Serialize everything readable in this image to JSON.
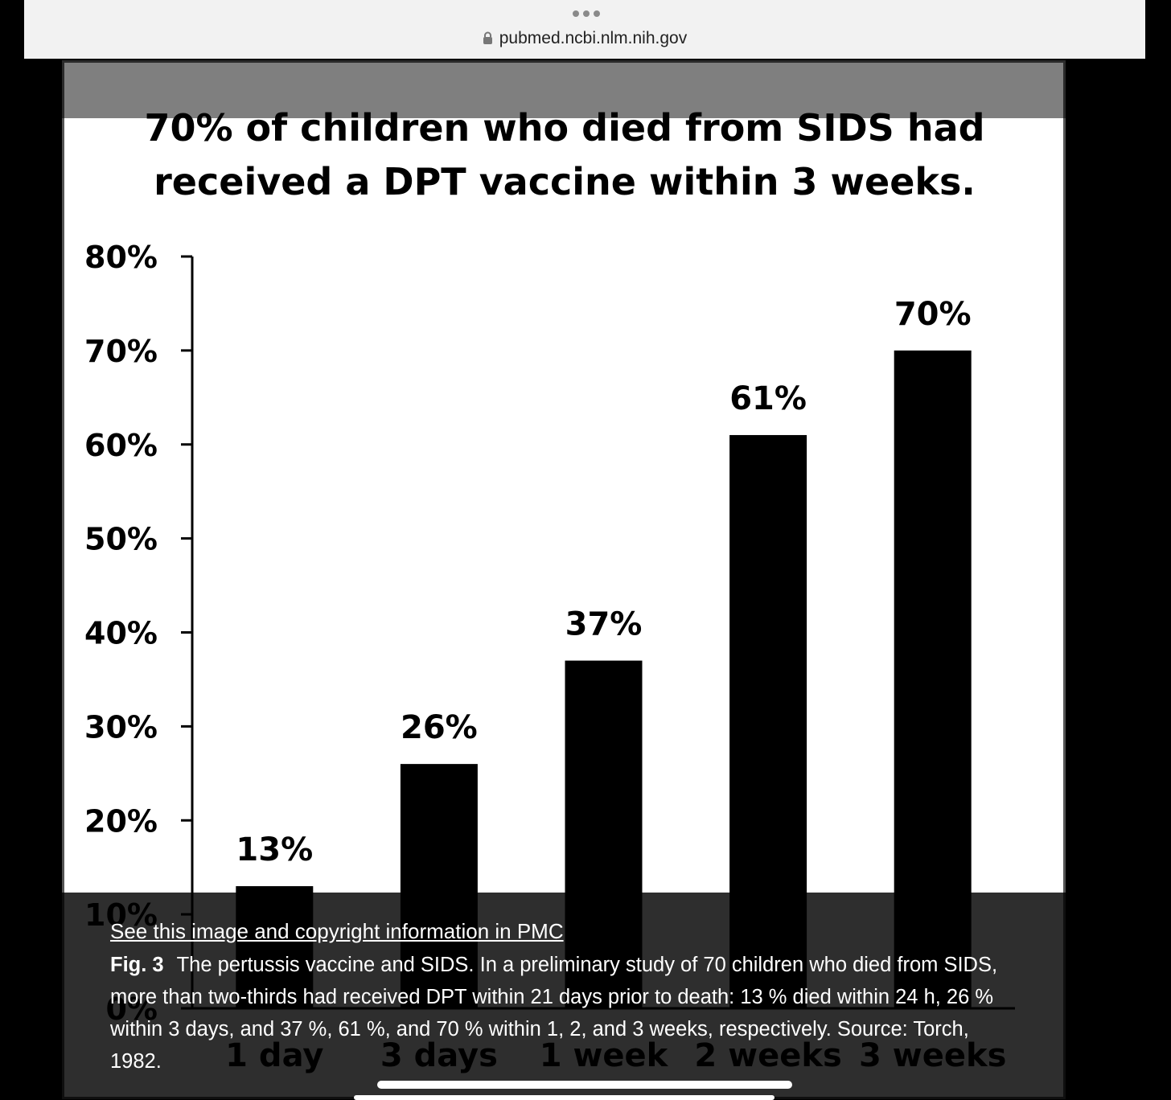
{
  "browser": {
    "url": "pubmed.ncbi.nlm.nih.gov"
  },
  "chart_data": {
    "type": "bar",
    "title": "70% of children who died from SIDS had received a DPT vaccine within 3 weeks.",
    "title_lines": [
      "70% of children who died from SIDS had",
      "received a DPT vaccine within 3 weeks."
    ],
    "categories": [
      "1 day",
      "3 days",
      "1 week",
      "2 weeks",
      "3 weeks"
    ],
    "values": [
      13,
      26,
      37,
      61,
      70
    ],
    "value_labels": [
      "13%",
      "26%",
      "37%",
      "61%",
      "70%"
    ],
    "y_ticks": [
      0,
      10,
      20,
      30,
      40,
      50,
      60,
      70,
      80
    ],
    "y_tick_labels": [
      "0%",
      "10%",
      "20%",
      "30%",
      "40%",
      "50%",
      "60%",
      "70%",
      "80%"
    ],
    "ylim": [
      0,
      80
    ],
    "xlabel": "",
    "ylabel": "",
    "grid": false,
    "bar_color": "#000000"
  },
  "caption": {
    "link_text": "See this image and copyright information in PMC",
    "fig_label": "Fig. 3",
    "text": "The pertussis vaccine and SIDS. In a preliminary study of 70 children who died from SIDS, more than two-thirds had received DPT within 21 days prior to death: 13 % died within 24 h, 26 % within 3 days, and 37 %, 61 %, and 70 % within 1, 2, and 3 weeks, respectively. Source: Torch, 1982."
  }
}
